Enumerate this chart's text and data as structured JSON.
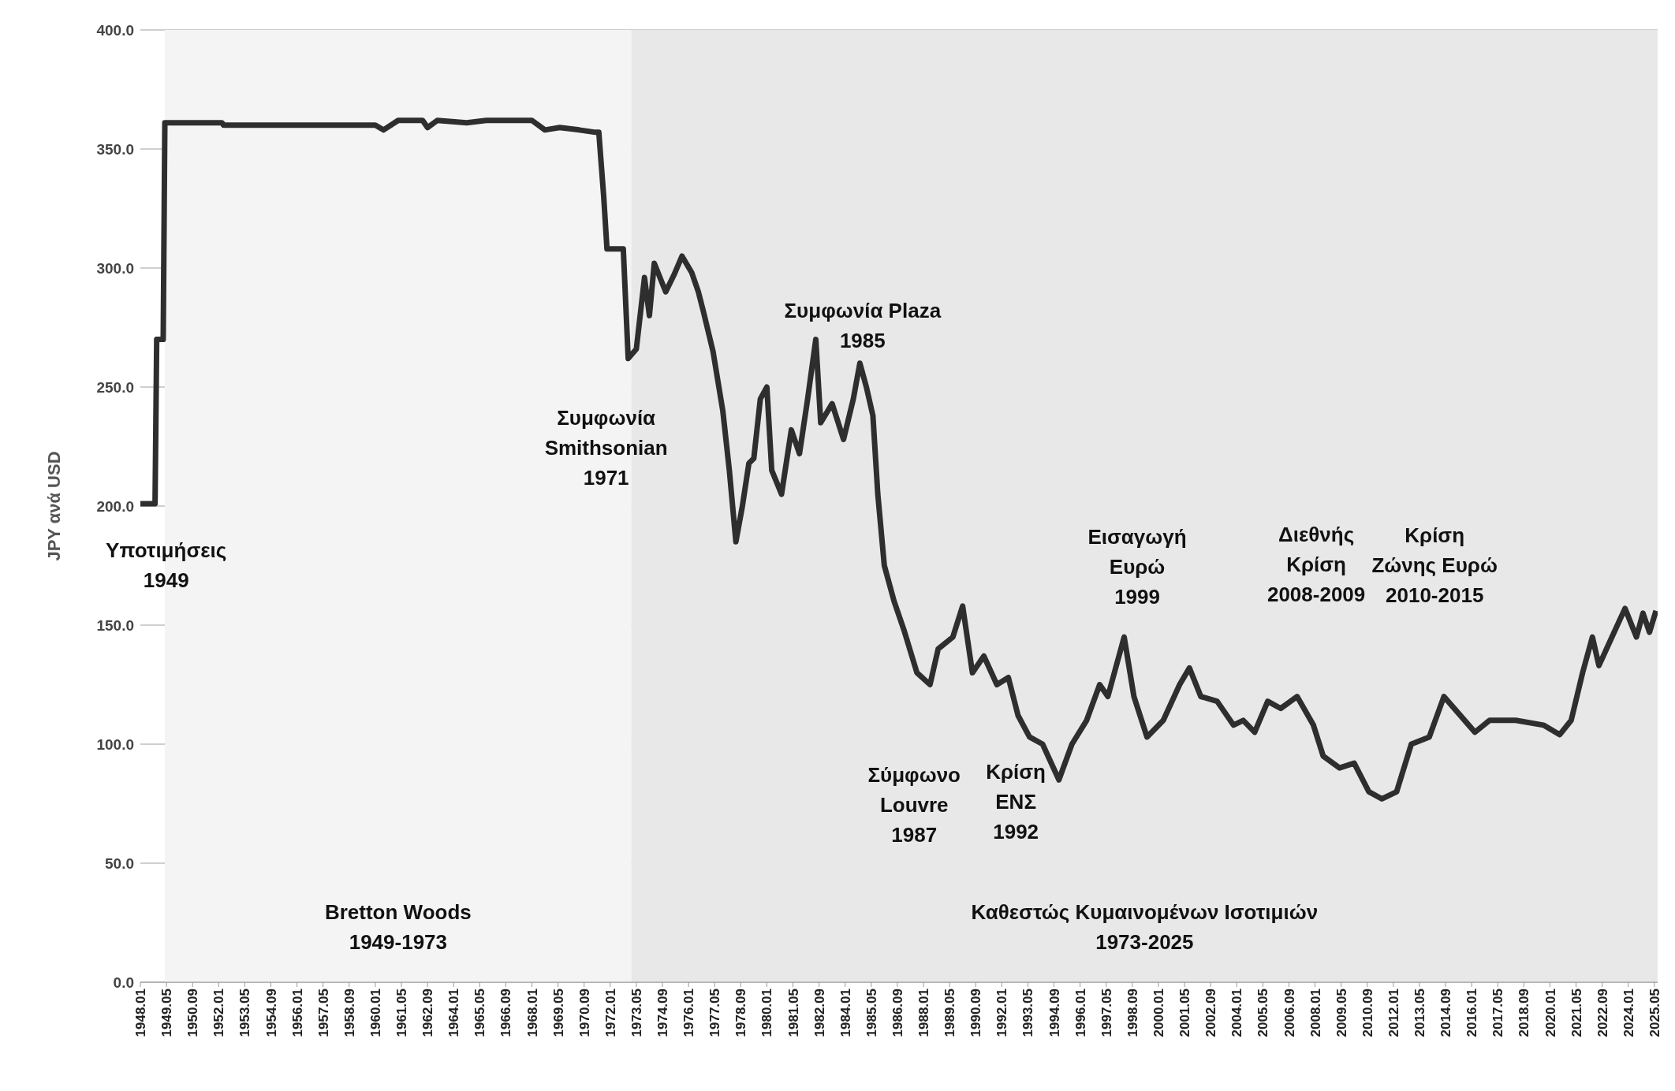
{
  "chart_data": {
    "type": "line",
    "ylabel": "JPY ανά USD",
    "grid": "y",
    "marker": "none",
    "legend": false,
    "x": [
      "1948-01",
      "1948-10",
      "1948-11",
      "1949-03",
      "1949-04",
      "1952-03",
      "1952-04",
      "1960-01",
      "1960-06",
      "1961-03",
      "1962-06",
      "1962-09",
      "1963-03",
      "1964-09",
      "1965-09",
      "1968-01",
      "1968-09",
      "1969-06",
      "1970-06",
      "1971-04",
      "1971-06",
      "1971-09",
      "1971-11",
      "1972-09",
      "1972-12",
      "1973-05",
      "1973-10",
      "1974-01",
      "1974-04",
      "1974-11",
      "1975-04",
      "1975-09",
      "1976-03",
      "1976-07",
      "1976-10",
      "1977-04",
      "1977-10",
      "1978-02",
      "1978-06",
      "1978-10",
      "1979-02",
      "1979-05",
      "1979-09",
      "1980-01",
      "1980-04",
      "1980-10",
      "1981-04",
      "1981-09",
      "1982-02",
      "1982-07",
      "1982-10",
      "1983-05",
      "1983-12",
      "1984-06",
      "1984-10",
      "1985-02",
      "1985-06",
      "1985-09",
      "1986-01",
      "1986-07",
      "1987-01",
      "1987-09",
      "1988-05",
      "1988-10",
      "1989-07",
      "1990-01",
      "1990-07",
      "1991-02",
      "1991-10",
      "1992-05",
      "1992-11",
      "1993-06",
      "1994-02",
      "1994-12",
      "1995-08",
      "1996-05",
      "1997-01",
      "1997-06",
      "1998-04",
      "1998-10",
      "1999-06",
      "2000-04",
      "2001-02",
      "2001-08",
      "2002-03",
      "2003-01",
      "2003-11",
      "2004-05",
      "2004-12",
      "2005-08",
      "2006-04",
      "2007-02",
      "2007-12",
      "2008-06",
      "2009-04",
      "2010-01",
      "2010-10",
      "2011-06",
      "2012-03",
      "2012-12",
      "2013-11",
      "2014-08",
      "2016-03",
      "2016-12",
      "2018-04",
      "2019-09",
      "2020-07",
      "2021-02",
      "2021-09",
      "2022-03",
      "2022-07",
      "2023-05",
      "2023-11",
      "2024-06",
      "2024-10",
      "2025-02",
      "2025-06"
    ],
    "series": [
      {
        "color": "#2e2e2e",
        "values": [
          201,
          201,
          270,
          270,
          361,
          361,
          360,
          360,
          358,
          362,
          362,
          359,
          362,
          361,
          362,
          362,
          358,
          359,
          358,
          357,
          357,
          330,
          308,
          308,
          262,
          266,
          296,
          280,
          302,
          290,
          297,
          305,
          298,
          290,
          282,
          265,
          240,
          215,
          185,
          200,
          218,
          220,
          245,
          250,
          215,
          205,
          232,
          222,
          245,
          270,
          235,
          243,
          228,
          245,
          260,
          250,
          238,
          205,
          175,
          160,
          148,
          130,
          125,
          140,
          145,
          158,
          130,
          137,
          125,
          128,
          112,
          103,
          100,
          85,
          100,
          110,
          125,
          120,
          145,
          120,
          103,
          110,
          125,
          132,
          120,
          118,
          108,
          110,
          105,
          118,
          115,
          120,
          108,
          95,
          90,
          92,
          80,
          77,
          80,
          100,
          103,
          120,
          105,
          110,
          110,
          108,
          104,
          110,
          130,
          145,
          133,
          148,
          157,
          145,
          155,
          147,
          156
        ]
      }
    ],
    "xlim": [
      "1948-01",
      "2025-07"
    ],
    "xticks": [
      {
        "value": "1948-01",
        "label": "1948.01"
      },
      {
        "value": "1949-05",
        "label": "1949.05"
      },
      {
        "value": "1950-09",
        "label": "1950.09"
      },
      {
        "value": "1952-01",
        "label": "1952.01"
      },
      {
        "value": "1953-05",
        "label": "1953.05"
      },
      {
        "value": "1954-09",
        "label": "1954.09"
      },
      {
        "value": "1956-01",
        "label": "1956.01"
      },
      {
        "value": "1957-05",
        "label": "1957.05"
      },
      {
        "value": "1958-09",
        "label": "1958.09"
      },
      {
        "value": "1960-01",
        "label": "1960.01"
      },
      {
        "value": "1961-05",
        "label": "1961.05"
      },
      {
        "value": "1962-09",
        "label": "1962.09"
      },
      {
        "value": "1964-01",
        "label": "1964.01"
      },
      {
        "value": "1965-05",
        "label": "1965.05"
      },
      {
        "value": "1966-09",
        "label": "1966.09"
      },
      {
        "value": "1968-01",
        "label": "1968.01"
      },
      {
        "value": "1969-05",
        "label": "1969.05"
      },
      {
        "value": "1970-09",
        "label": "1970.09"
      },
      {
        "value": "1972-01",
        "label": "1972.01"
      },
      {
        "value": "1973-05",
        "label": "1973.05"
      },
      {
        "value": "1974-09",
        "label": "1974.09"
      },
      {
        "value": "1976-01",
        "label": "1976.01"
      },
      {
        "value": "1977-05",
        "label": "1977.05"
      },
      {
        "value": "1978-09",
        "label": "1978.09"
      },
      {
        "value": "1980-01",
        "label": "1980.01"
      },
      {
        "value": "1981-05",
        "label": "1981.05"
      },
      {
        "value": "1982-09",
        "label": "1982.09"
      },
      {
        "value": "1984-01",
        "label": "1984.01"
      },
      {
        "value": "1985-05",
        "label": "1985.05"
      },
      {
        "value": "1986-09",
        "label": "1986.09"
      },
      {
        "value": "1988-01",
        "label": "1988.01"
      },
      {
        "value": "1989-05",
        "label": "1989.05"
      },
      {
        "value": "1990-09",
        "label": "1990.09"
      },
      {
        "value": "1992-01",
        "label": "1992.01"
      },
      {
        "value": "1993-05",
        "label": "1993.05"
      },
      {
        "value": "1994-09",
        "label": "1994.09"
      },
      {
        "value": "1996-01",
        "label": "1996.01"
      },
      {
        "value": "1997-05",
        "label": "1997.05"
      },
      {
        "value": "1998-09",
        "label": "1998.09"
      },
      {
        "value": "2000-01",
        "label": "2000.01"
      },
      {
        "value": "2001-05",
        "label": "2001.05"
      },
      {
        "value": "2002-09",
        "label": "2002.09"
      },
      {
        "value": "2004-01",
        "label": "2004.01"
      },
      {
        "value": "2005-05",
        "label": "2005.05"
      },
      {
        "value": "2006-09",
        "label": "2006.09"
      },
      {
        "value": "2008-01",
        "label": "2008.01"
      },
      {
        "value": "2009-05",
        "label": "2009.05"
      },
      {
        "value": "2010-09",
        "label": "2010.09"
      },
      {
        "value": "2012-01",
        "label": "2012.01"
      },
      {
        "value": "2013-05",
        "label": "2013.05"
      },
      {
        "value": "2014-09",
        "label": "2014.09"
      },
      {
        "value": "2016-01",
        "label": "2016.01"
      },
      {
        "value": "2017-05",
        "label": "2017.05"
      },
      {
        "value": "2018-09",
        "label": "2018.09"
      },
      {
        "value": "2020-01",
        "label": "2020.01"
      },
      {
        "value": "2021-05",
        "label": "2021.05"
      },
      {
        "value": "2022-09",
        "label": "2022.09"
      },
      {
        "value": "2024-01",
        "label": "2024.01"
      },
      {
        "value": "2025-05",
        "label": "2025.05"
      }
    ],
    "ylim": [
      0,
      400
    ],
    "yticks": [
      {
        "value": 0,
        "label": "0.0"
      },
      {
        "value": 50,
        "label": "50.0"
      },
      {
        "value": 100,
        "label": "100.0"
      },
      {
        "value": 150,
        "label": "150.0"
      },
      {
        "value": 200,
        "label": "200.0"
      },
      {
        "value": 250,
        "label": "250.0"
      },
      {
        "value": 300,
        "label": "300.0"
      },
      {
        "value": 350,
        "label": "350.0"
      },
      {
        "value": 400,
        "label": "400.0"
      }
    ],
    "bands": [
      {
        "axis": "x",
        "from": "1949-04",
        "to": "1973-02",
        "label": "Bretton Woods\n1949-1973",
        "color": "#f4f4f4"
      },
      {
        "axis": "x",
        "from": "1973-02",
        "to": "2025-07",
        "label": "Καθεστώς Κυμαινομένων Ισοτιμιών\n1973-2025",
        "color": "#e8e8e8"
      }
    ],
    "annotations": [
      "Υποτιμήσεις\n1949",
      "Συμφωνία\nSmithsonian\n1971",
      "Συμφωνία Plaza\n1985",
      "Σύμφωνο\nLouvre\n1987",
      "Κρίση\nΕΝΣ\n1992",
      "Εισαγωγή\nΕυρώ\n1999",
      "Διεθνής\nΚρίση\n2008-2009",
      "Κρίση\nΖώνης Ευρώ\n2010-2015"
    ]
  }
}
